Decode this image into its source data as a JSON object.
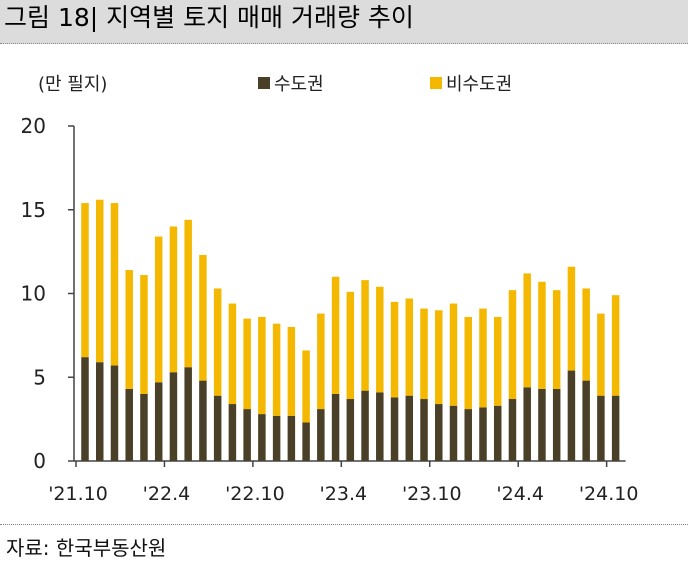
{
  "title": "그림 18| 지역별 토지 매매 거래량 추이",
  "source": "자료: 한국부동산원",
  "colors": {
    "capital": "#4a3f27",
    "noncapital": "#f5b800",
    "axis": "#444444"
  },
  "chart_data": {
    "type": "bar",
    "stacked": true,
    "unit_label": "(만 필지)",
    "ylim": [
      0,
      20
    ],
    "yticks": [
      0,
      5,
      10,
      15,
      20
    ],
    "x_tick_labels": [
      "'21.10",
      "'22.4",
      "'22.10",
      "'23.4",
      "'23.10",
      "'24.4",
      "'24.10"
    ],
    "x_tick_indices": [
      0,
      6,
      12,
      18,
      24,
      30,
      36
    ],
    "categories": [
      "'21.10",
      "'21.11",
      "'21.12",
      "'22.1",
      "'22.2",
      "'22.3",
      "'22.4",
      "'22.5",
      "'22.6",
      "'22.7",
      "'22.8",
      "'22.9",
      "'22.10",
      "'22.11",
      "'22.12",
      "'23.1",
      "'23.2",
      "'23.3",
      "'23.4",
      "'23.5",
      "'23.6",
      "'23.7",
      "'23.8",
      "'23.9",
      "'23.10",
      "'23.11",
      "'23.12",
      "'24.1",
      "'24.2",
      "'24.3",
      "'24.4",
      "'24.5",
      "'24.6",
      "'24.7",
      "'24.8",
      "'24.9",
      "'24.10"
    ],
    "series": [
      {
        "name": "수도권",
        "values": [
          6.2,
          5.9,
          5.7,
          4.3,
          4.0,
          4.7,
          5.3,
          5.6,
          4.8,
          3.9,
          3.4,
          3.1,
          2.8,
          2.7,
          2.7,
          2.3,
          3.1,
          4.0,
          3.7,
          4.2,
          4.1,
          3.8,
          3.9,
          3.7,
          3.4,
          3.3,
          3.1,
          3.2,
          3.3,
          3.7,
          4.4,
          4.3,
          4.3,
          5.4,
          4.8,
          3.9,
          3.9
        ]
      },
      {
        "name": "비수도권",
        "values": [
          9.2,
          9.7,
          9.7,
          7.1,
          7.1,
          8.7,
          8.7,
          8.8,
          7.5,
          6.4,
          6.0,
          5.4,
          5.8,
          5.5,
          5.3,
          4.3,
          5.7,
          7.0,
          6.4,
          6.6,
          6.3,
          5.7,
          5.8,
          5.4,
          5.6,
          6.1,
          5.5,
          5.9,
          5.3,
          6.5,
          6.8,
          6.4,
          5.9,
          6.2,
          5.5,
          4.9,
          6.0
        ]
      }
    ]
  }
}
